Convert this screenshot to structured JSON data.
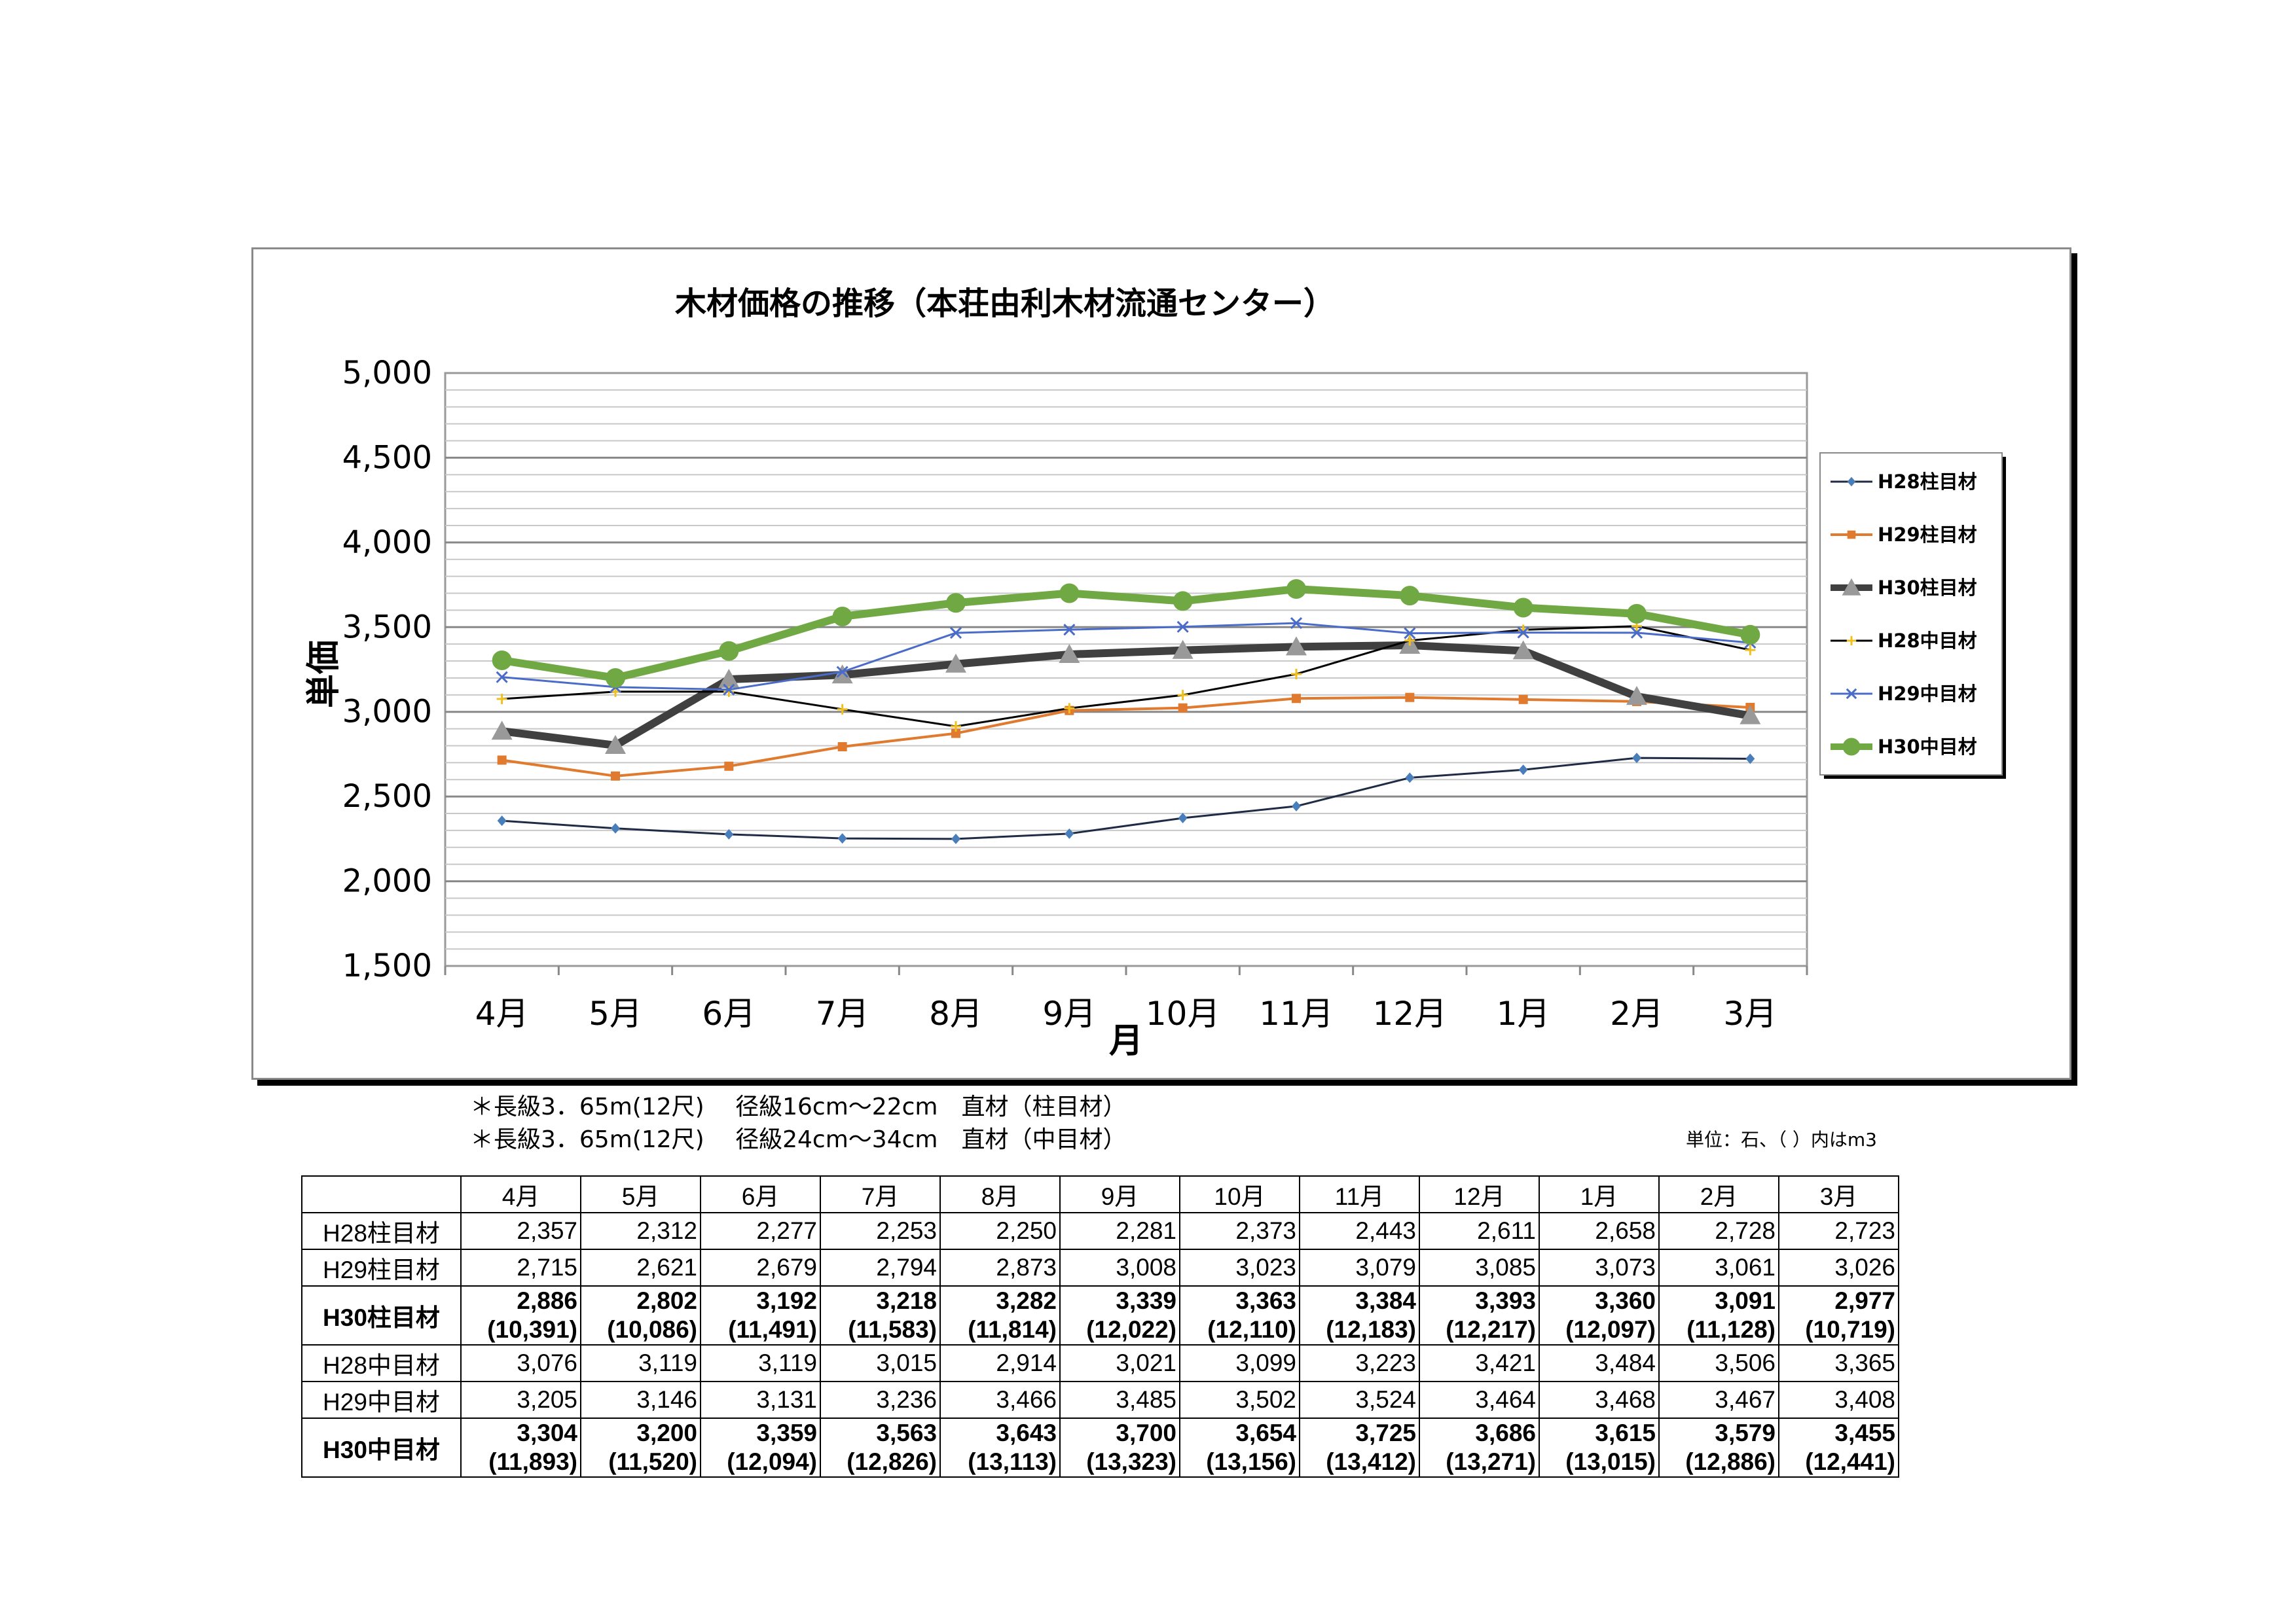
{
  "chart_data": {
    "type": "line",
    "title": "木材価格の推移（本荘由利木材流通センター）",
    "xlabel": "月",
    "ylabel": "単価",
    "ylim": [
      1500,
      5000
    ],
    "yticks": [
      "5,000",
      "4,500",
      "4,000",
      "3,500",
      "3,000",
      "2,500",
      "2,000",
      "1,500"
    ],
    "ytick_values": [
      5000,
      4500,
      4000,
      3500,
      3000,
      2500,
      2000,
      1500
    ],
    "categories": [
      "4月",
      "5月",
      "6月",
      "7月",
      "8月",
      "9月",
      "10月",
      "11月",
      "12月",
      "1月",
      "2月",
      "3月"
    ],
    "legend_position": "right",
    "grid": true,
    "series": [
      {
        "name": "H28柱目材",
        "color": "#4a7ebb",
        "line_color": "#1f2a44",
        "marker": "diamond",
        "width": 3,
        "values": [
          2357,
          2312,
          2277,
          2253,
          2250,
          2281,
          2373,
          2443,
          2611,
          2658,
          2728,
          2723
        ]
      },
      {
        "name": "H29柱目材",
        "color": "#e07a2e",
        "line_color": "#e07a2e",
        "marker": "square",
        "width": 4,
        "values": [
          2715,
          2621,
          2679,
          2794,
          2873,
          3008,
          3023,
          3079,
          3085,
          3073,
          3061,
          3026
        ]
      },
      {
        "name": "H30柱目材",
        "color": "#999999",
        "line_color": "#404040",
        "marker": "triangle",
        "width": 12,
        "values": [
          2886,
          2802,
          3192,
          3218,
          3282,
          3339,
          3363,
          3384,
          3393,
          3360,
          3091,
          2977
        ]
      },
      {
        "name": "H28中目材",
        "color": "#f0c020",
        "line_color": "#000000",
        "marker": "star",
        "width": 3,
        "values": [
          3076,
          3119,
          3119,
          3015,
          2914,
          3021,
          3099,
          3223,
          3421,
          3484,
          3506,
          3365
        ]
      },
      {
        "name": "H29中目材",
        "color": "#4a6cc8",
        "line_color": "#4a6cc8",
        "marker": "x",
        "width": 3,
        "values": [
          3205,
          3146,
          3131,
          3236,
          3466,
          3485,
          3502,
          3524,
          3464,
          3468,
          3467,
          3408
        ]
      },
      {
        "name": "H30中目材",
        "color": "#70a844",
        "line_color": "#70a844",
        "marker": "circle",
        "width": 12,
        "values": [
          3304,
          3200,
          3359,
          3563,
          3643,
          3700,
          3654,
          3725,
          3686,
          3615,
          3579,
          3455
        ]
      }
    ]
  },
  "notes": {
    "line1": "＊長級3．65m(12尺)　 径級16cm～22cm　直材（柱目材）",
    "line2": "＊長級3．65m(12尺)　 径級24cm～34cm　直材（中目材）",
    "unit": "単位：石、（ ）内はm3"
  },
  "table": {
    "headers": [
      "",
      "4月",
      "5月",
      "6月",
      "7月",
      "8月",
      "9月",
      "10月",
      "11月",
      "12月",
      "1月",
      "2月",
      "3月"
    ],
    "rows": [
      {
        "label": "H28柱目材",
        "bold": false,
        "values": [
          "2,357",
          "2,312",
          "2,277",
          "2,253",
          "2,250",
          "2,281",
          "2,373",
          "2,443",
          "2,611",
          "2,658",
          "2,728",
          "2,723"
        ]
      },
      {
        "label": "H29柱目材",
        "bold": false,
        "values": [
          "2,715",
          "2,621",
          "2,679",
          "2,794",
          "2,873",
          "3,008",
          "3,023",
          "3,079",
          "3,085",
          "3,073",
          "3,061",
          "3,026"
        ]
      },
      {
        "label": "H30柱目材",
        "bold": true,
        "values": [
          "2,886",
          "2,802",
          "3,192",
          "3,218",
          "3,282",
          "3,339",
          "3,363",
          "3,384",
          "3,393",
          "3,360",
          "3,091",
          "2,977"
        ],
        "m3": [
          "(10,391)",
          "(10,086)",
          "(11,491)",
          "(11,583)",
          "(11,814)",
          "(12,022)",
          "(12,110)",
          "(12,183)",
          "(12,217)",
          "(12,097)",
          "(11,128)",
          "(10,719)"
        ]
      },
      {
        "label": "H28中目材",
        "bold": false,
        "values": [
          "3,076",
          "3,119",
          "3,119",
          "3,015",
          "2,914",
          "3,021",
          "3,099",
          "3,223",
          "3,421",
          "3,484",
          "3,506",
          "3,365"
        ]
      },
      {
        "label": "H29中目材",
        "bold": false,
        "values": [
          "3,205",
          "3,146",
          "3,131",
          "3,236",
          "3,466",
          "3,485",
          "3,502",
          "3,524",
          "3,464",
          "3,468",
          "3,467",
          "3,408"
        ]
      },
      {
        "label": "H30中目材",
        "bold": true,
        "values": [
          "3,304",
          "3,200",
          "3,359",
          "3,563",
          "3,643",
          "3,700",
          "3,654",
          "3,725",
          "3,686",
          "3,615",
          "3,579",
          "3,455"
        ],
        "m3": [
          "(11,893)",
          "(11,520)",
          "(12,094)",
          "(12,826)",
          "(13,113)",
          "(13,323)",
          "(13,156)",
          "(13,412)",
          "(13,271)",
          "(13,015)",
          "(12,886)",
          "(12,441)"
        ]
      }
    ]
  }
}
